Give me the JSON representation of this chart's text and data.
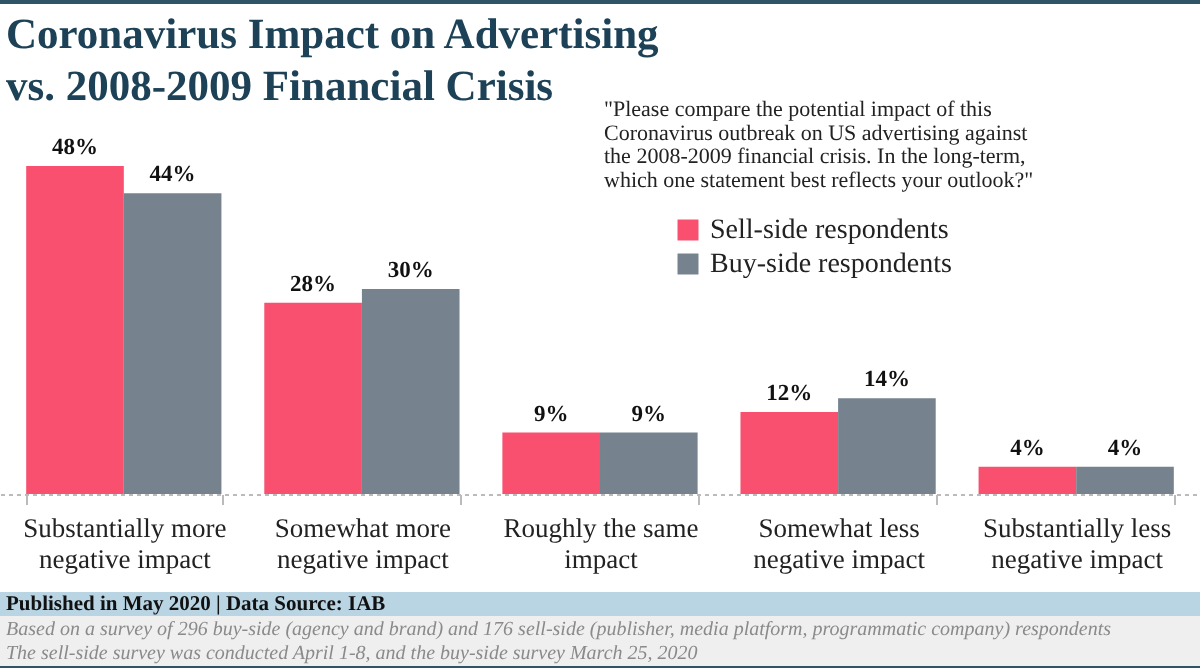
{
  "chart_data": {
    "type": "bar",
    "title": "Coronavirus Impact on Advertising vs. 2008-2009 Financial Crisis",
    "subtitle": "\"Please compare the potential impact of this Coronavirus outbreak on US advertising against the 2008-2009 financial crisis. In the long-term, which one statement best reflects your outlook?\"",
    "categories": [
      "Substantially more negative impact",
      "Somewhat more negative impact",
      "Roughly the same impact",
      "Somewhat less negative impact",
      "Substantially less negative impact"
    ],
    "series": [
      {
        "name": "Sell-side respondents",
        "color": "#f9506f",
        "values": [
          48,
          28,
          9,
          12,
          4
        ],
        "value_labels": [
          "48%",
          "28%",
          "9%",
          "12%",
          "4%"
        ]
      },
      {
        "name": "Buy-side respondents",
        "color": "#76838f",
        "values": [
          44,
          30,
          9,
          14,
          4
        ],
        "value_labels": [
          "44%",
          "30%",
          "9%",
          "14%",
          "4%"
        ]
      }
    ],
    "legend": "top right",
    "annotations": [
      "Published in May 2020 | Data Source: IAB",
      "Based on a survey of 296 buy-side (agency and brand) and 176 sell-side (publisher, media platform, programmatic company) respondents",
      "The sell-side survey was conducted April 1-8, and the buy-side survey March 25, 2020"
    ]
  }
}
